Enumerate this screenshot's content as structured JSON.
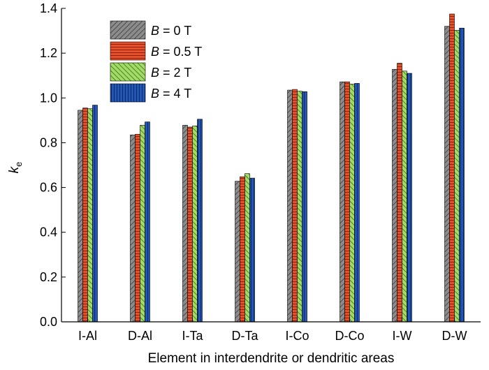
{
  "chart_data": {
    "type": "bar",
    "xlabel": "Element in interdendrite or dendritic areas",
    "ylabel": "k",
    "ylabel_sub": "e",
    "ylim": [
      0,
      1.4
    ],
    "yticks": [
      "0.0",
      "0.2",
      "0.4",
      "0.6",
      "0.8",
      "1.0",
      "1.2",
      "1.4"
    ],
    "categories": [
      "I-Al",
      "D-Al",
      "I-Ta",
      "D-Ta",
      "I-Co",
      "D-Co",
      "I-W",
      "D-W"
    ],
    "legend_position": "top-left",
    "grid": false,
    "series": [
      {
        "label_var": "B",
        "label_rest": " = 0 T",
        "color": "#8c8c8c",
        "pattern": "diagonal-hatch",
        "values": [
          0.945,
          0.835,
          0.878,
          0.628,
          1.035,
          1.072,
          1.128,
          1.32
        ]
      },
      {
        "label_var": "B",
        "label_rest": " = 0.5 T",
        "color": "#e8502a",
        "pattern": "horizontal-lines",
        "values": [
          0.955,
          0.838,
          0.87,
          0.648,
          1.038,
          1.072,
          1.155,
          1.375
        ]
      },
      {
        "label_var": "B",
        "label_rest": " = 2 T",
        "color": "#7cc242",
        "pattern": "diagonal-stripes",
        "values": [
          0.952,
          0.878,
          0.875,
          0.662,
          1.03,
          1.062,
          1.12,
          1.302
        ]
      },
      {
        "label_var": "B",
        "label_rest": " = 4 T",
        "color": "#2257b5",
        "pattern": "vertical-lines",
        "values": [
          0.968,
          0.893,
          0.905,
          0.642,
          1.028,
          1.065,
          1.11,
          1.312
        ]
      }
    ]
  }
}
